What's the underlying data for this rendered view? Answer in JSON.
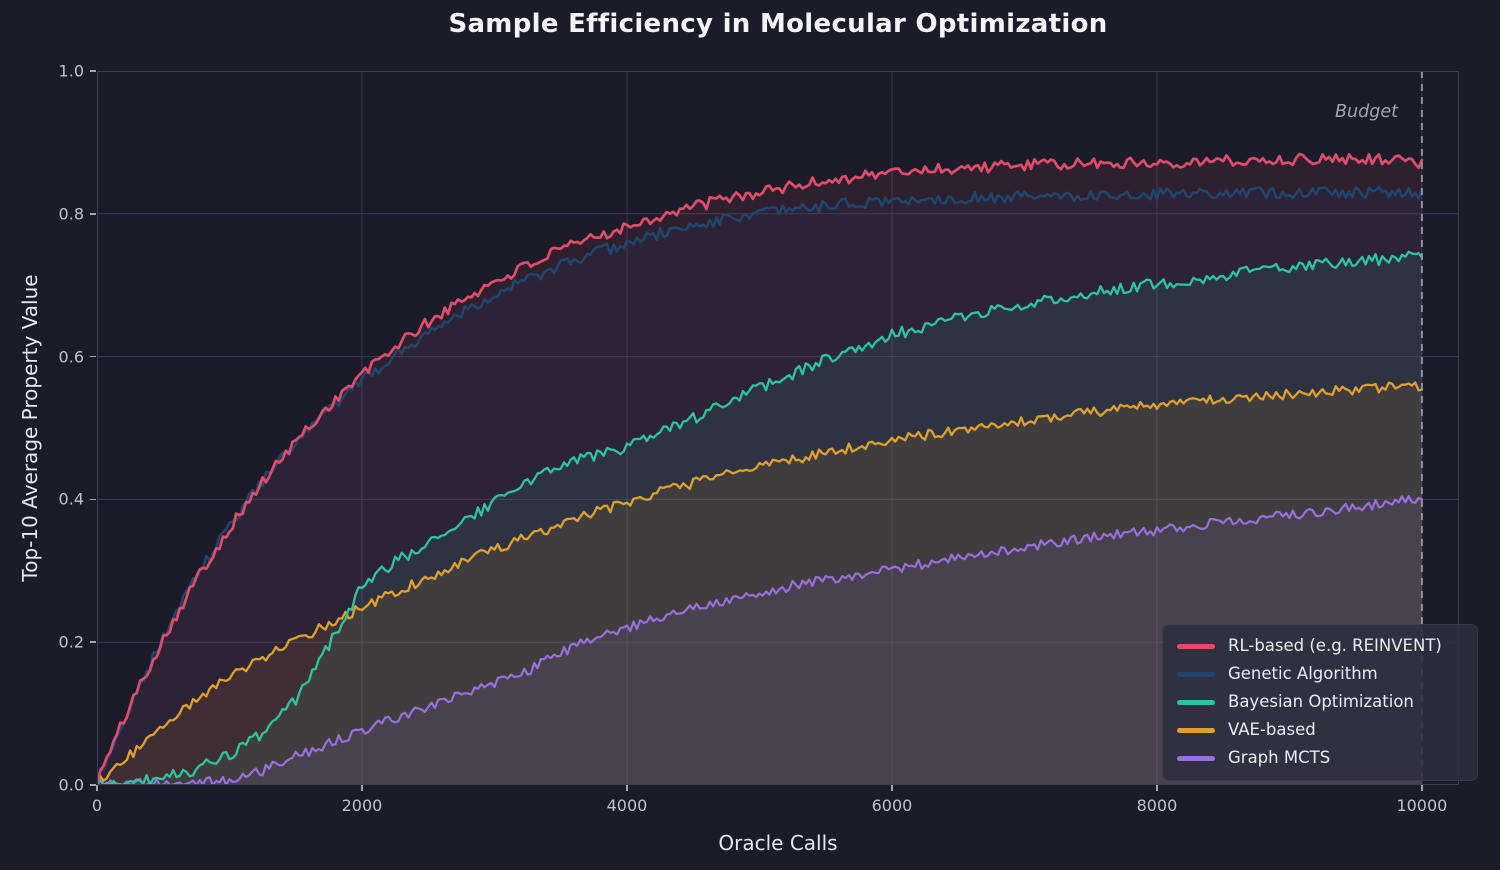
{
  "budget": {
    "label": "Budget",
    "x": 10000
  },
  "theme": {
    "figure_bg": "#1b1b2a",
    "grid_color": "#3a3a52",
    "spine_color": "#3c3c55",
    "tick_color": "#a6a6b4",
    "tick_label_color": "#c2c2ce",
    "title_color": "#f4f4f7",
    "axis_label_color": "#e8e8ee",
    "budget_line_color": "#9a9aa8",
    "legend_bg": "rgba(46,45,64,0.88)"
  },
  "chart_data": {
    "type": "line",
    "title": "Sample Efficiency in Molecular Optimization",
    "xlabel": "Oracle Calls",
    "ylabel": "Top-10 Average Property Value",
    "xlim": [
      0,
      10280
    ],
    "ylim": [
      0,
      1
    ],
    "x_ticks": [
      0,
      2000,
      4000,
      6000,
      8000,
      10000
    ],
    "y_ticks": [
      0.0,
      0.2,
      0.4,
      0.6,
      0.8,
      1.0
    ],
    "grid": true,
    "legend_position": "lower right",
    "budget": {
      "x": 10000,
      "label": "Budget"
    },
    "style": {
      "noise_step": 25,
      "fill_alpha": 0.1,
      "anchor_step": 250
    },
    "x": [
      0,
      250,
      500,
      750,
      1000,
      1250,
      1500,
      1750,
      2000,
      2250,
      2500,
      2750,
      3000,
      3250,
      3500,
      3750,
      4000,
      4250,
      4500,
      4750,
      5000,
      5250,
      5500,
      5750,
      6000,
      6250,
      6500,
      6750,
      7000,
      7250,
      7500,
      7750,
      8000,
      8250,
      8500,
      8750,
      9000,
      9250,
      9500,
      9750,
      10000
    ],
    "series": [
      {
        "name": "RL-based (e.g. REINVENT)",
        "color": "#de4e68",
        "line_width": 2.7,
        "noise": 0.008,
        "seed": 101,
        "values": [
          0.005,
          0.112,
          0.205,
          0.288,
          0.36,
          0.424,
          0.481,
          0.531,
          0.575,
          0.614,
          0.648,
          0.678,
          0.705,
          0.728,
          0.749,
          0.767,
          0.783,
          0.797,
          0.81,
          0.821,
          0.83,
          0.839,
          0.846,
          0.853,
          0.858,
          0.862,
          0.864,
          0.866,
          0.868,
          0.869,
          0.87,
          0.871,
          0.872,
          0.873,
          0.874,
          0.875,
          0.876,
          0.877,
          0.878,
          0.877,
          0.87
        ]
      },
      {
        "name": "Genetic Algorithm",
        "color": "#20456e",
        "line_width": 2.5,
        "noise": 0.008,
        "seed": 202,
        "values": [
          0.005,
          0.11,
          0.208,
          0.292,
          0.363,
          0.426,
          0.478,
          0.525,
          0.566,
          0.602,
          0.634,
          0.662,
          0.687,
          0.708,
          0.727,
          0.744,
          0.759,
          0.772,
          0.783,
          0.793,
          0.8,
          0.806,
          0.811,
          0.815,
          0.818,
          0.82,
          0.822,
          0.823,
          0.824,
          0.825,
          0.826,
          0.827,
          0.828,
          0.828,
          0.829,
          0.829,
          0.83,
          0.83,
          0.831,
          0.829,
          0.828
        ]
      },
      {
        "name": "Bayesian Optimization",
        "color": "#2ec49e",
        "line_width": 2.3,
        "noise": 0.008,
        "seed": 303,
        "values": [
          0.002,
          0.004,
          0.01,
          0.022,
          0.042,
          0.072,
          0.118,
          0.196,
          0.278,
          0.312,
          0.34,
          0.368,
          0.396,
          0.424,
          0.45,
          0.462,
          0.472,
          0.492,
          0.513,
          0.535,
          0.556,
          0.576,
          0.596,
          0.614,
          0.63,
          0.643,
          0.654,
          0.664,
          0.673,
          0.681,
          0.689,
          0.696,
          0.702,
          0.708,
          0.714,
          0.72,
          0.725,
          0.729,
          0.733,
          0.737,
          0.74
        ]
      },
      {
        "name": "VAE-based",
        "color": "#e0a030",
        "line_width": 2.3,
        "noise": 0.007,
        "seed": 404,
        "values": [
          0.003,
          0.042,
          0.082,
          0.12,
          0.15,
          0.178,
          0.202,
          0.226,
          0.248,
          0.27,
          0.291,
          0.311,
          0.33,
          0.348,
          0.365,
          0.381,
          0.396,
          0.41,
          0.423,
          0.435,
          0.446,
          0.456,
          0.465,
          0.474,
          0.482,
          0.49,
          0.497,
          0.504,
          0.51,
          0.516,
          0.522,
          0.527,
          0.532,
          0.536,
          0.54,
          0.544,
          0.548,
          0.551,
          0.554,
          0.557,
          0.56
        ]
      },
      {
        "name": "Graph MCTS",
        "color": "#9a6fdd",
        "line_width": 2.2,
        "noise": 0.007,
        "seed": 505,
        "values": [
          0.001,
          0.002,
          0.002,
          0.003,
          0.006,
          0.02,
          0.04,
          0.058,
          0.075,
          0.093,
          0.11,
          0.126,
          0.142,
          0.16,
          0.185,
          0.205,
          0.22,
          0.235,
          0.248,
          0.26,
          0.27,
          0.279,
          0.287,
          0.294,
          0.301,
          0.31,
          0.318,
          0.326,
          0.333,
          0.34,
          0.346,
          0.352,
          0.357,
          0.363,
          0.368,
          0.373,
          0.378,
          0.383,
          0.39,
          0.396,
          0.4
        ]
      }
    ]
  }
}
